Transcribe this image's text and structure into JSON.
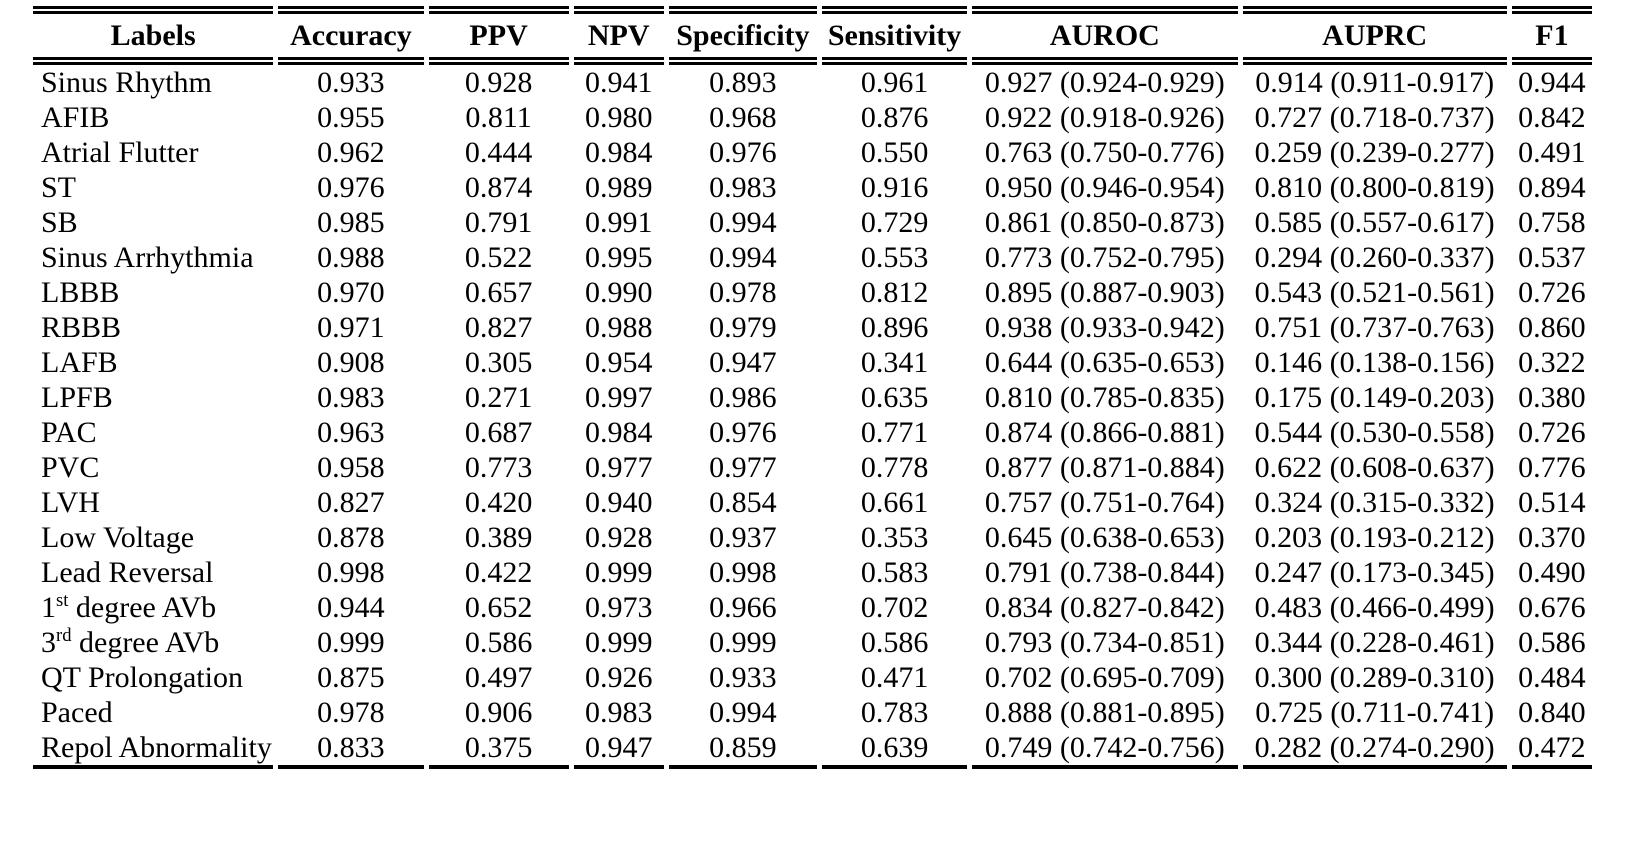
{
  "colors": {
    "background": "#ffffff",
    "text": "#000000",
    "rule": "#000000"
  },
  "table": {
    "columns": [
      {
        "key": "label",
        "label": "Labels"
      },
      {
        "key": "accuracy",
        "label": "Accuracy"
      },
      {
        "key": "ppv",
        "label": "PPV"
      },
      {
        "key": "npv",
        "label": "NPV"
      },
      {
        "key": "specificity",
        "label": "Specificity"
      },
      {
        "key": "sensitivity",
        "label": "Sensitivity"
      },
      {
        "key": "auroc",
        "label": "AUROC"
      },
      {
        "key": "auprc",
        "label": "AUPRC"
      },
      {
        "key": "f1",
        "label": "F1"
      }
    ],
    "rows": [
      {
        "label": "Sinus Rhythm",
        "accuracy": "0.933",
        "ppv": "0.928",
        "npv": "0.941",
        "specificity": "0.893",
        "sensitivity": "0.961",
        "auroc": "0.927 (0.924-0.929)",
        "auprc": "0.914 (0.911-0.917)",
        "f1": "0.944"
      },
      {
        "label": "AFIB",
        "accuracy": "0.955",
        "ppv": "0.811",
        "npv": "0.980",
        "specificity": "0.968",
        "sensitivity": "0.876",
        "auroc": "0.922 (0.918-0.926)",
        "auprc": "0.727 (0.718-0.737)",
        "f1": "0.842"
      },
      {
        "label": "Atrial Flutter",
        "accuracy": "0.962",
        "ppv": "0.444",
        "npv": "0.984",
        "specificity": "0.976",
        "sensitivity": "0.550",
        "auroc": "0.763 (0.750-0.776)",
        "auprc": "0.259 (0.239-0.277)",
        "f1": "0.491"
      },
      {
        "label": "ST",
        "accuracy": "0.976",
        "ppv": "0.874",
        "npv": "0.989",
        "specificity": "0.983",
        "sensitivity": "0.916",
        "auroc": "0.950 (0.946-0.954)",
        "auprc": "0.810 (0.800-0.819)",
        "f1": "0.894"
      },
      {
        "label": "SB",
        "accuracy": "0.985",
        "ppv": "0.791",
        "npv": "0.991",
        "specificity": "0.994",
        "sensitivity": "0.729",
        "auroc": "0.861 (0.850-0.873)",
        "auprc": "0.585 (0.557-0.617)",
        "f1": "0.758"
      },
      {
        "label": "Sinus Arrhythmia",
        "accuracy": "0.988",
        "ppv": "0.522",
        "npv": "0.995",
        "specificity": "0.994",
        "sensitivity": "0.553",
        "auroc": "0.773 (0.752-0.795)",
        "auprc": "0.294 (0.260-0.337)",
        "f1": "0.537"
      },
      {
        "label": "LBBB",
        "accuracy": "0.970",
        "ppv": "0.657",
        "npv": "0.990",
        "specificity": "0.978",
        "sensitivity": "0.812",
        "auroc": "0.895 (0.887-0.903)",
        "auprc": "0.543 (0.521-0.561)",
        "f1": "0.726"
      },
      {
        "label": "RBBB",
        "accuracy": "0.971",
        "ppv": "0.827",
        "npv": "0.988",
        "specificity": "0.979",
        "sensitivity": "0.896",
        "auroc": "0.938 (0.933-0.942)",
        "auprc": "0.751 (0.737-0.763)",
        "f1": "0.860"
      },
      {
        "label": "LAFB",
        "accuracy": "0.908",
        "ppv": "0.305",
        "npv": "0.954",
        "specificity": "0.947",
        "sensitivity": "0.341",
        "auroc": "0.644 (0.635-0.653)",
        "auprc": "0.146 (0.138-0.156)",
        "f1": "0.322"
      },
      {
        "label": "LPFB",
        "accuracy": "0.983",
        "ppv": "0.271",
        "npv": "0.997",
        "specificity": "0.986",
        "sensitivity": "0.635",
        "auroc": "0.810 (0.785-0.835)",
        "auprc": "0.175 (0.149-0.203)",
        "f1": "0.380"
      },
      {
        "label": "PAC",
        "accuracy": "0.963",
        "ppv": "0.687",
        "npv": "0.984",
        "specificity": "0.976",
        "sensitivity": "0.771",
        "auroc": "0.874 (0.866-0.881)",
        "auprc": "0.544 (0.530-0.558)",
        "f1": "0.726"
      },
      {
        "label": "PVC",
        "accuracy": "0.958",
        "ppv": "0.773",
        "npv": "0.977",
        "specificity": "0.977",
        "sensitivity": "0.778",
        "auroc": "0.877 (0.871-0.884)",
        "auprc": "0.622 (0.608-0.637)",
        "f1": "0.776"
      },
      {
        "label": "LVH",
        "accuracy": "0.827",
        "ppv": "0.420",
        "npv": "0.940",
        "specificity": "0.854",
        "sensitivity": "0.661",
        "auroc": "0.757 (0.751-0.764)",
        "auprc": "0.324 (0.315-0.332)",
        "f1": "0.514"
      },
      {
        "label": "Low Voltage",
        "accuracy": "0.878",
        "ppv": "0.389",
        "npv": "0.928",
        "specificity": "0.937",
        "sensitivity": "0.353",
        "auroc": "0.645 (0.638-0.653)",
        "auprc": "0.203 (0.193-0.212)",
        "f1": "0.370"
      },
      {
        "label": "Lead Reversal",
        "accuracy": "0.998",
        "ppv": "0.422",
        "npv": "0.999",
        "specificity": "0.998",
        "sensitivity": "0.583",
        "auroc": "0.791 (0.738-0.844)",
        "auprc": "0.247 (0.173-0.345)",
        "f1": "0.490"
      },
      {
        "label": [
          {
            "t": "1"
          },
          {
            "t": "st",
            "sup": true
          },
          {
            "t": " degree AVb"
          }
        ],
        "accuracy": "0.944",
        "ppv": "0.652",
        "npv": "0.973",
        "specificity": "0.966",
        "sensitivity": "0.702",
        "auroc": "0.834 (0.827-0.842)",
        "auprc": "0.483 (0.466-0.499)",
        "f1": "0.676"
      },
      {
        "label": [
          {
            "t": "3"
          },
          {
            "t": "rd",
            "sup": true
          },
          {
            "t": " degree AVb"
          }
        ],
        "accuracy": "0.999",
        "ppv": "0.586",
        "npv": "0.999",
        "specificity": "0.999",
        "sensitivity": "0.586",
        "auroc": "0.793 (0.734-0.851)",
        "auprc": "0.344 (0.228-0.461)",
        "f1": "0.586"
      },
      {
        "label": "QT Prolongation",
        "accuracy": "0.875",
        "ppv": "0.497",
        "npv": "0.926",
        "specificity": "0.933",
        "sensitivity": "0.471",
        "auroc": "0.702 (0.695-0.709)",
        "auprc": "0.300 (0.289-0.310)",
        "f1": "0.484"
      },
      {
        "label": "Paced",
        "accuracy": "0.978",
        "ppv": "0.906",
        "npv": "0.983",
        "specificity": "0.994",
        "sensitivity": "0.783",
        "auroc": "0.888 (0.881-0.895)",
        "auprc": "0.725 (0.711-0.741)",
        "f1": "0.840"
      },
      {
        "label": "Repol Abnormality",
        "accuracy": "0.833",
        "ppv": "0.375",
        "npv": "0.947",
        "specificity": "0.859",
        "sensitivity": "0.639",
        "auroc": "0.749 (0.742-0.756)",
        "auprc": "0.282 (0.274-0.290)",
        "f1": "0.472"
      }
    ]
  }
}
